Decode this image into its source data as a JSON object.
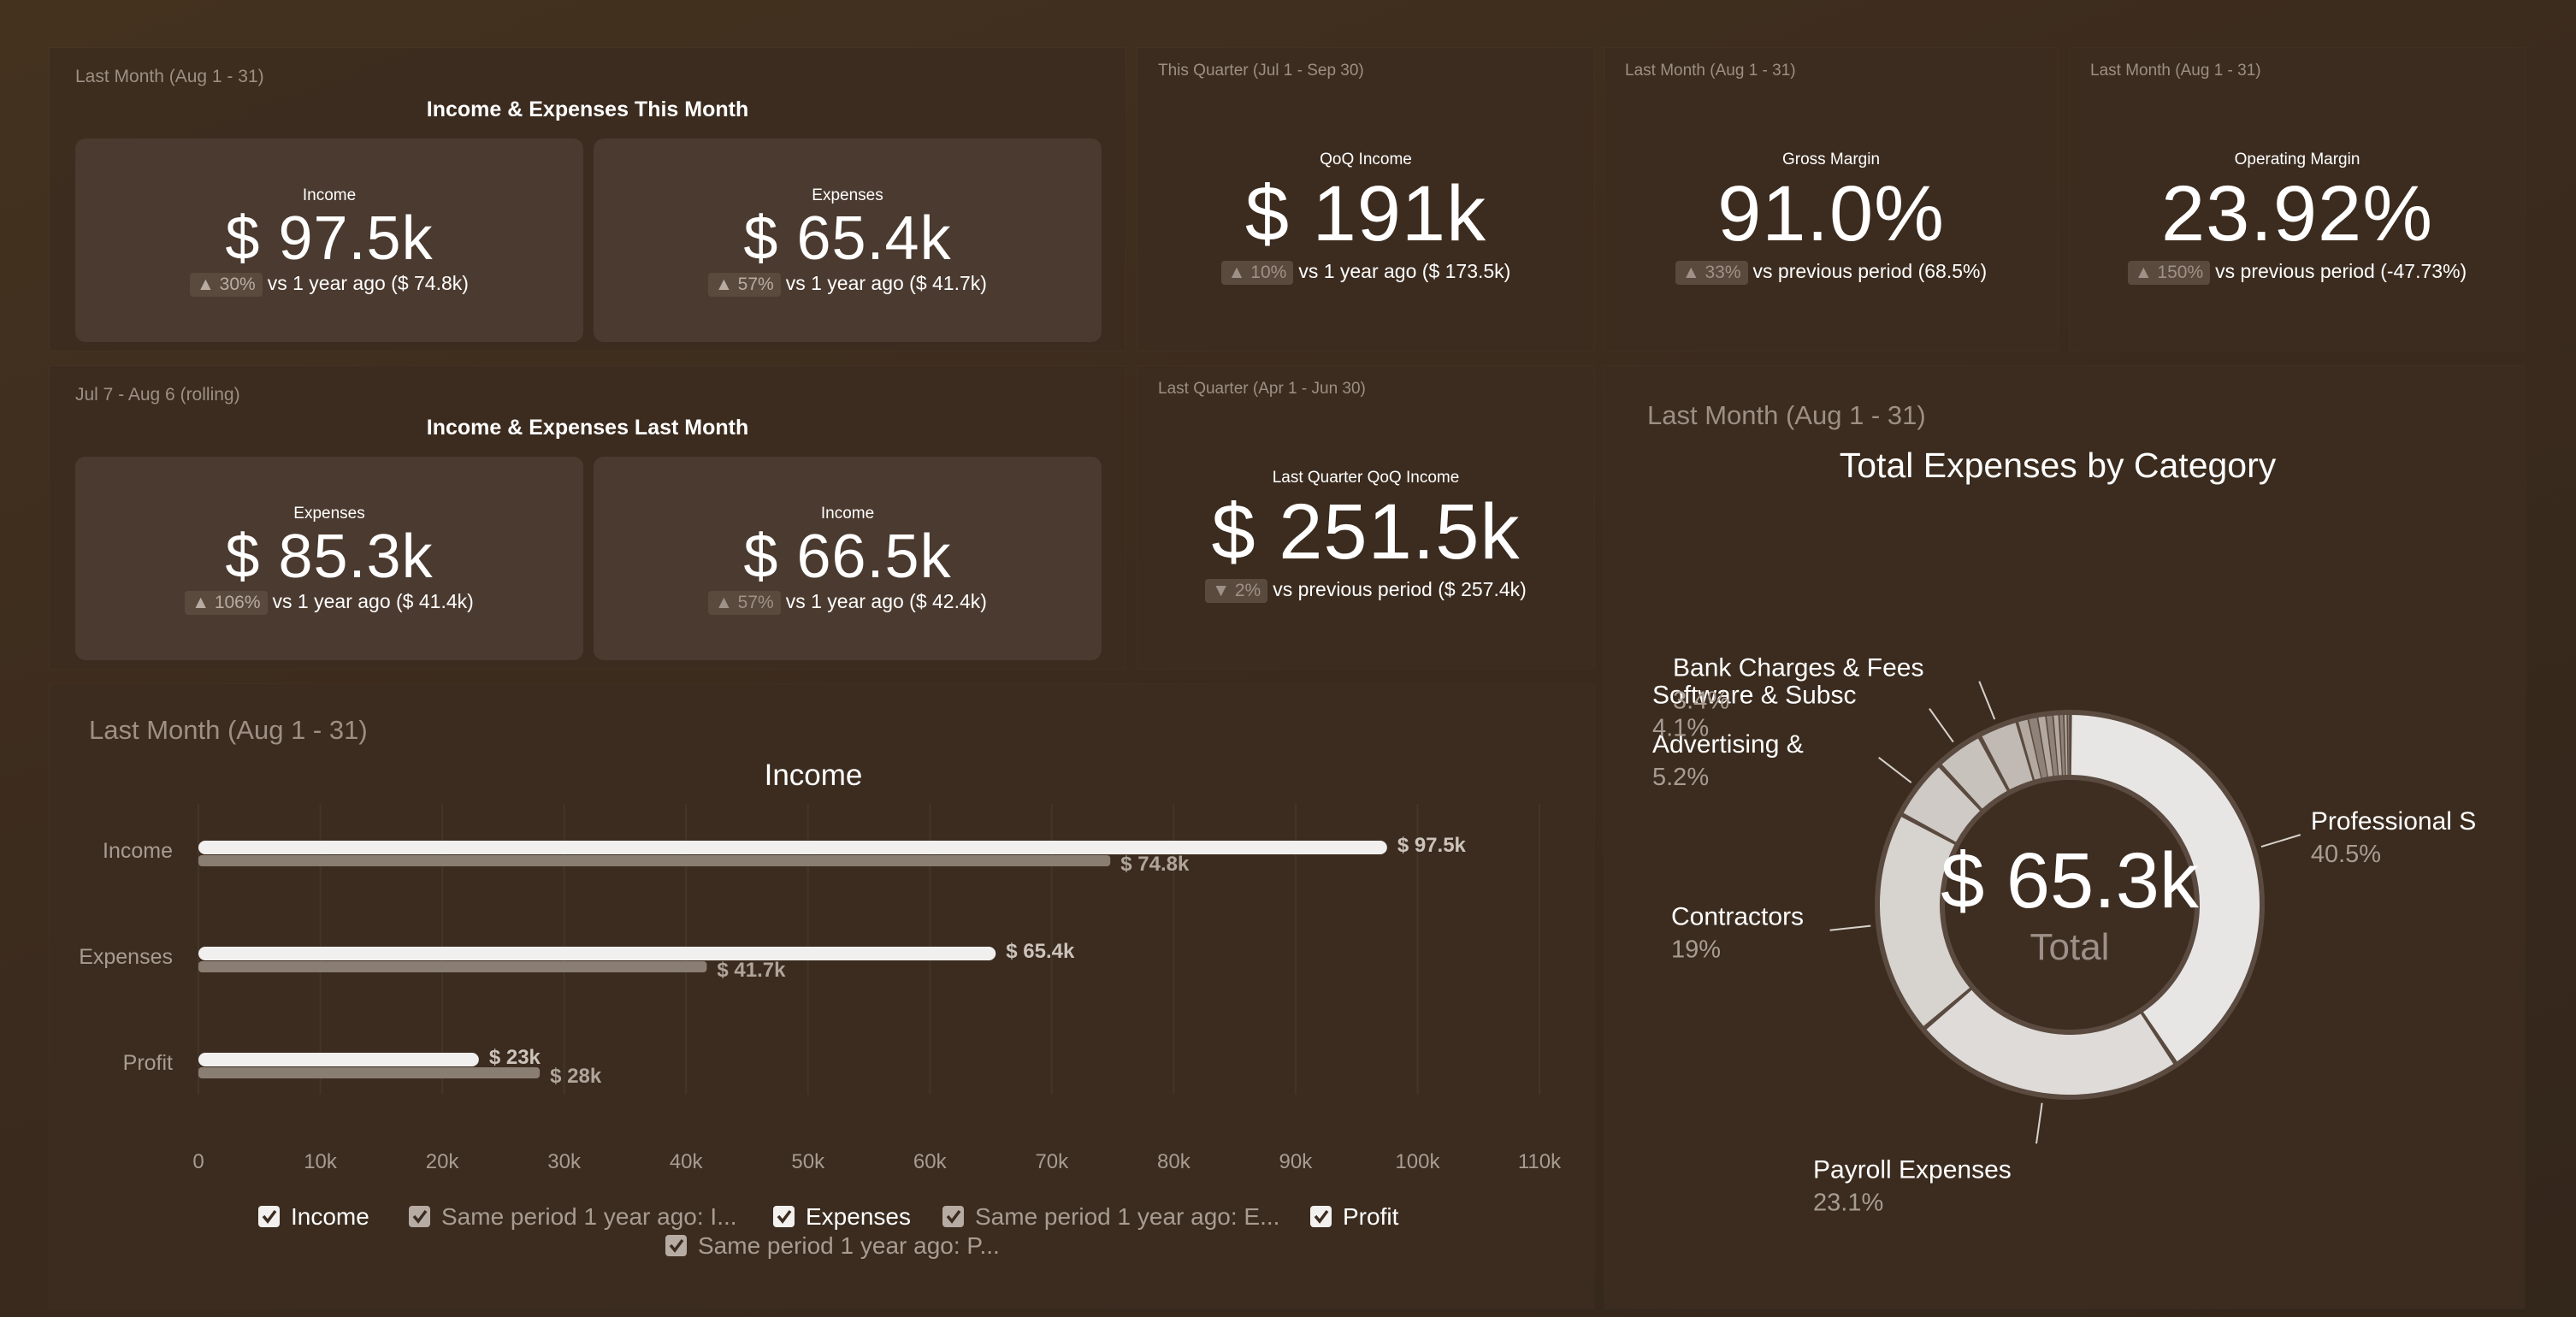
{
  "panels": {
    "this_month": {
      "period": "Last Month (Aug 1 - 31)",
      "title": "Income & Expenses This Month",
      "cards": [
        {
          "label": "Income",
          "value": "$ 97.5k",
          "badge": "▲ 30%",
          "comparison": "vs 1 year ago ($ 74.8k)"
        },
        {
          "label": "Expenses",
          "value": "$ 65.4k",
          "badge": "▲ 57%",
          "comparison": "vs 1 year ago ($ 41.7k)"
        }
      ]
    },
    "last_month": {
      "period": "Jul 7 - Aug 6 (rolling)",
      "title": "Income & Expenses Last Month",
      "cards": [
        {
          "label": "Expenses",
          "value": "$ 85.3k",
          "badge": "▲ 106%",
          "comparison": "vs 1 year ago ($ 41.4k)"
        },
        {
          "label": "Income",
          "value": "$ 66.5k",
          "badge": "▲ 57%",
          "comparison": "vs 1 year ago ($ 42.4k)"
        }
      ]
    },
    "qoq_income": {
      "period": "This Quarter (Jul 1 - Sep 30)",
      "label": "QoQ Income",
      "value": "$ 191k",
      "badge": "▲ 10%",
      "comparison": "vs 1 year ago ($ 173.5k)"
    },
    "gross_margin": {
      "period": "Last Month (Aug 1 - 31)",
      "label": "Gross Margin",
      "value": "91.0%",
      "badge": "▲ 33%",
      "comparison": "vs previous period (68.5%)"
    },
    "operating_margin": {
      "period": "Last Month (Aug 1 - 31)",
      "label": "Operating Margin",
      "value": "23.92%",
      "badge": "▲ 150%",
      "comparison": "vs previous period (-47.73%)"
    },
    "last_quarter": {
      "period": "Last Quarter (Apr 1 - Jun 30)",
      "label": "Last Quarter QoQ Income",
      "value": "$ 251.5k",
      "badge": "▼ 2%",
      "comparison": "vs previous period ($ 257.4k)"
    },
    "income_chart": {
      "period": "Last Month (Aug 1 - 31)"
    },
    "expenses_chart": {
      "period": "Last Month (Aug 1 - 31)"
    }
  },
  "chart_data": [
    {
      "type": "bar",
      "orientation": "horizontal",
      "title": "Income",
      "categories": [
        "Income",
        "Expenses",
        "Profit"
      ],
      "series": [
        {
          "name": "Income / Expenses / Profit",
          "values": [
            97.5,
            65.4,
            23
          ],
          "labels": [
            "$ 97.5k",
            "$ 65.4k",
            "$ 23k"
          ],
          "color": "#f2f0ee"
        },
        {
          "name": "Same period 1 year ago",
          "values": [
            74.8,
            41.7,
            28
          ],
          "labels": [
            "$ 74.8k",
            "$ 41.7k",
            "$ 28k"
          ],
          "color": "#8a7d72"
        }
      ],
      "xlim": [
        0,
        110
      ],
      "xticks": [
        "0",
        "10k",
        "20k",
        "30k",
        "40k",
        "50k",
        "60k",
        "70k",
        "80k",
        "90k",
        "100k",
        "110k"
      ],
      "legend": [
        {
          "label": "Income"
        },
        {
          "label": "Same period 1 year ago: I..."
        },
        {
          "label": "Expenses"
        },
        {
          "label": "Same period 1 year ago: E..."
        },
        {
          "label": "Profit"
        },
        {
          "label": "Same period 1 year ago: P..."
        }
      ],
      "legend_position": "bottom"
    },
    {
      "type": "pie",
      "variant": "donut",
      "title": "Total Expenses by Category",
      "center_value": "$ 65.3k",
      "center_label": "Total",
      "slices": [
        {
          "label": "Professional S",
          "percent": 40.5,
          "percent_label": "40.5%"
        },
        {
          "label": "Payroll Expenses",
          "percent": 23.1,
          "percent_label": "23.1%"
        },
        {
          "label": "Contractors",
          "percent": 19,
          "percent_label": "19%"
        },
        {
          "label": "Advertising &",
          "percent": 5.2,
          "percent_label": "5.2%"
        },
        {
          "label": "Software & Subsc",
          "percent": 4.1,
          "percent_label": "4.1%"
        },
        {
          "label": "Bank Charges & Fees",
          "percent": 3.4,
          "percent_label": "3.4%"
        },
        {
          "label": "",
          "percent": 0.9,
          "percent_label": ""
        },
        {
          "label": "",
          "percent": 0.8,
          "percent_label": ""
        },
        {
          "label": "",
          "percent": 0.7,
          "percent_label": ""
        },
        {
          "label": "",
          "percent": 0.6,
          "percent_label": ""
        },
        {
          "label": "",
          "percent": 0.5,
          "percent_label": ""
        },
        {
          "label": "",
          "percent": 0.4,
          "percent_label": ""
        },
        {
          "label": "",
          "percent": 0.3,
          "percent_label": ""
        },
        {
          "label": "",
          "percent": 0.2,
          "percent_label": ""
        }
      ]
    }
  ]
}
